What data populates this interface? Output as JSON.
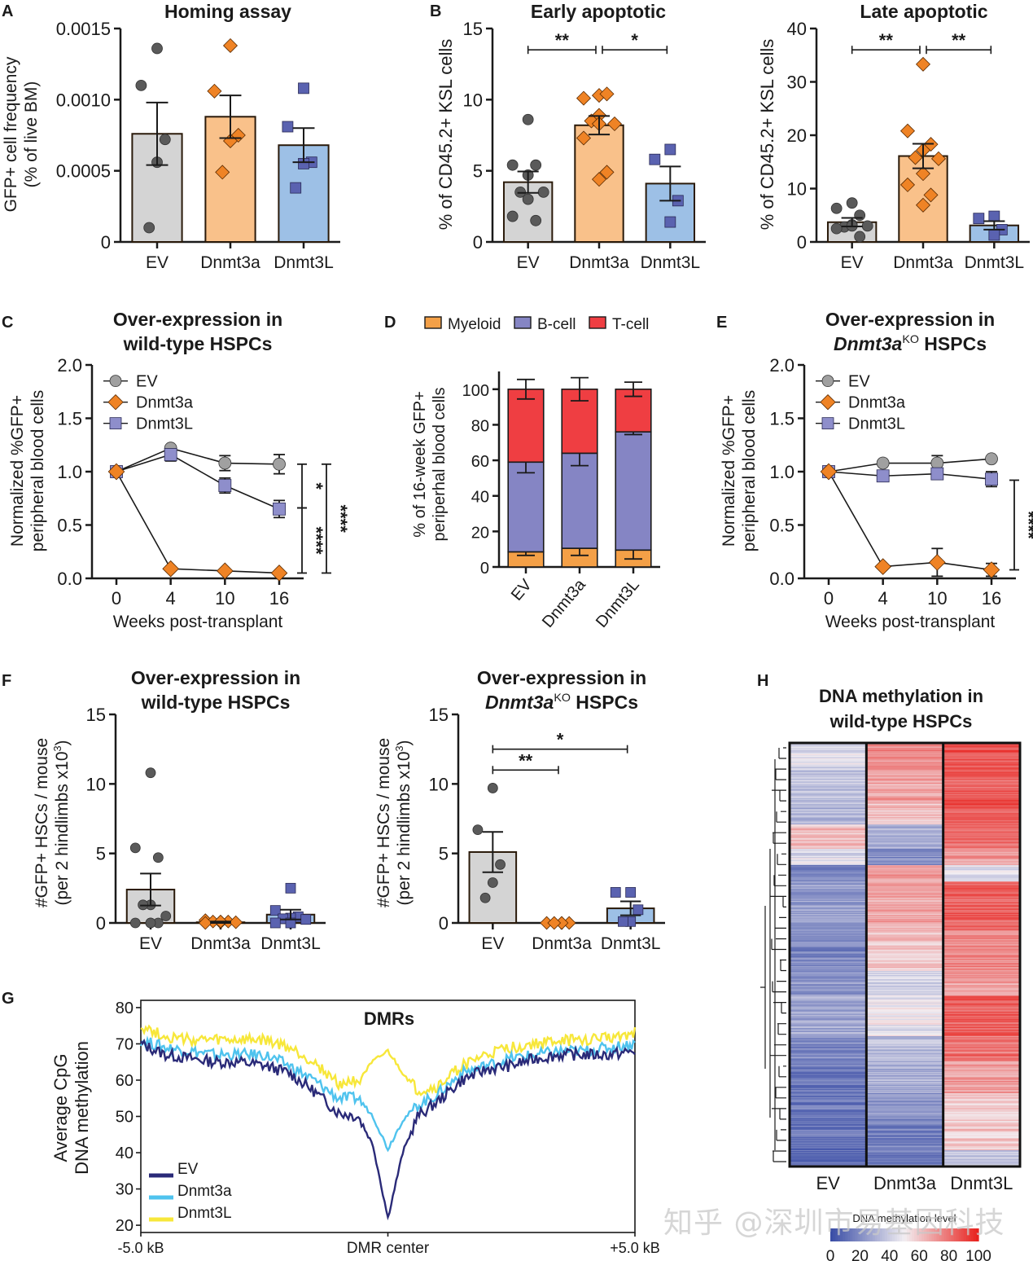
{
  "panel_labels": [
    "A",
    "B",
    "C",
    "D",
    "E",
    "F",
    "G",
    "H"
  ],
  "colors": {
    "ev_bar": "#d4d4d4",
    "ev_point": "#5a5a5a",
    "ev_line_marker": "#a0a0a0",
    "dnmt3a_bar": "#f9c18a",
    "dnmt3a_point": "#ef8325",
    "dnmt3l_bar": "#9dc0e6",
    "dnmt3l_point": "#5a62b0",
    "dnmt3l_line_marker": "#8e8ecb",
    "myeloid": "#f4a047",
    "bcell": "#8585c4",
    "tcell": "#ef3e42",
    "g_ev": "#2a2a78",
    "g_dnmt3a": "#4fc3ee",
    "g_dnmt3l": "#f7e73a",
    "heat_low": "#3b4ea6",
    "heat_mid": "#f2eef2",
    "heat_high": "#e8231f"
  },
  "chart_data": [
    {
      "id": "A",
      "type": "bar",
      "title": "Homing assay",
      "ylabel": "GFP+ cell frequency\n(% of live BM)",
      "categories": [
        "EV",
        "Dnmt3a",
        "Dnmt3L"
      ],
      "ylim": [
        0,
        0.0015
      ],
      "yticks": [
        0,
        0.0005,
        0.001,
        0.0015
      ],
      "ytick_labels": [
        "0",
        "0.0005",
        "0.0010",
        "0.0015"
      ],
      "values": [
        0.00076,
        0.00088,
        0.00068
      ],
      "sem": [
        0.00022,
        0.00015,
        0.00012
      ],
      "points": [
        [
          0.00136,
          0.0011,
          0.00072,
          0.00056,
          0.0001
        ],
        [
          0.00138,
          0.00106,
          0.00075,
          0.00071,
          0.00049
        ],
        [
          0.00108,
          0.00081,
          0.00056,
          0.00055,
          0.00038
        ]
      ],
      "markers": [
        "circle",
        "diamond",
        "square"
      ],
      "significance": []
    },
    {
      "id": "B",
      "type": "bar",
      "title": "Early apoptotic",
      "ylabel": "% of CD45.2+ KSL cells",
      "categories": [
        "EV",
        "Dnmt3a",
        "Dnmt3L"
      ],
      "ylim": [
        0,
        15
      ],
      "yticks": [
        0,
        5,
        10,
        15
      ],
      "ytick_labels": [
        "0",
        "5",
        "10",
        "15"
      ],
      "values": [
        4.2,
        8.2,
        4.1
      ],
      "sem": [
        0.75,
        0.65,
        1.2
      ],
      "points": [
        [
          8.6,
          5.4,
          5.4,
          4.7,
          3.5,
          3.5,
          3.0,
          1.8,
          1.5
        ],
        [
          10.3,
          10.1,
          10.4,
          8.9,
          8.5,
          8.3,
          8.3,
          7.3,
          4.9,
          4.4
        ],
        [
          6.5,
          5.8,
          2.9,
          1.4
        ]
      ],
      "markers": [
        "circle",
        "diamond",
        "square"
      ],
      "significance": [
        {
          "from": 0,
          "to": 1,
          "label": "**",
          "y": 13.5
        },
        {
          "from": 1,
          "to": 2,
          "label": "*",
          "y": 13.5
        }
      ]
    },
    {
      "id": "B2",
      "type": "bar",
      "title": "Late apoptotic",
      "ylabel": "% of CD45.2+ KSL cells",
      "categories": [
        "EV",
        "Dnmt3a",
        "Dnmt3L"
      ],
      "ylim": [
        0,
        40
      ],
      "yticks": [
        0,
        10,
        20,
        30,
        40
      ],
      "ytick_labels": [
        "0",
        "10",
        "20",
        "30",
        "40"
      ],
      "values": [
        3.7,
        16.1,
        3.1
      ],
      "sem": [
        0.8,
        2.3,
        0.8
      ],
      "points": [
        [
          7.3,
          6.3,
          5.0,
          3.2,
          2.8,
          3.0,
          3.0,
          2.5,
          1.0
        ],
        [
          33.3,
          20.8,
          18.3,
          17.2,
          15.8,
          15.6,
          12.8,
          10.7,
          8.8,
          6.9
        ],
        [
          4.8,
          4.4,
          2.3,
          1.3
        ]
      ],
      "markers": [
        "circle",
        "diamond",
        "square"
      ],
      "significance": [
        {
          "from": 0,
          "to": 1,
          "label": "**",
          "y": 36
        },
        {
          "from": 1,
          "to": 2,
          "label": "**",
          "y": 36
        }
      ]
    },
    {
      "id": "C",
      "type": "line",
      "title": [
        "Over-expression in",
        "wild-type HSPCs"
      ],
      "xlabel": "Weeks post-transplant",
      "ylabel": "Normalized %GFP+\nperipheral blood cells",
      "x": [
        0,
        4,
        10,
        16
      ],
      "xtick_labels": [
        "0",
        "4",
        "10",
        "16"
      ],
      "ylim": [
        0,
        2.0
      ],
      "yticks": [
        0,
        0.5,
        1.0,
        1.5,
        2.0
      ],
      "ytick_labels": [
        "0.0",
        "0.5",
        "1.0",
        "1.5",
        "2.0"
      ],
      "series": [
        {
          "name": "EV",
          "marker": "circle",
          "values": [
            1.0,
            1.22,
            1.08,
            1.07
          ],
          "sem": [
            0,
            0,
            0.07,
            0.09
          ]
        },
        {
          "name": "Dnmt3a",
          "marker": "diamond",
          "values": [
            1.0,
            0.09,
            0.07,
            0.05
          ],
          "sem": [
            0,
            0,
            0,
            0
          ]
        },
        {
          "name": "Dnmt3L",
          "marker": "square",
          "values": [
            1.0,
            1.16,
            0.87,
            0.65
          ],
          "sem": [
            0,
            0.06,
            0.07,
            0.08
          ]
        }
      ],
      "legend": "top-left",
      "significance": [
        {
          "y1": 0.05,
          "y2": 0.66,
          "label": "****",
          "pos": "inner"
        },
        {
          "y1": 0.66,
          "y2": 1.07,
          "label": "*",
          "pos": "inner"
        },
        {
          "y1": 0.05,
          "y2": 1.07,
          "label": "****",
          "pos": "outer"
        }
      ]
    },
    {
      "id": "D",
      "type": "bar",
      "stacked": true,
      "ylabel": "% of 16-week GFP+\nperiperhal blood cells",
      "categories": [
        "EV",
        "Dnmt3a",
        "Dnmt3L"
      ],
      "ylim": [
        0,
        110
      ],
      "yticks": [
        0,
        20,
        40,
        60,
        80,
        100
      ],
      "ytick_labels": [
        "0",
        "20",
        "40",
        "60",
        "80",
        "100"
      ],
      "series": [
        {
          "name": "Myeloid",
          "values": [
            8.5,
            10.5,
            9.5
          ],
          "sem": [
            2.0,
            4.0,
            5.0
          ]
        },
        {
          "name": "B-cell",
          "values": [
            50.5,
            53.5,
            66.5
          ],
          "sem": [
            6.0,
            7.0,
            1.5
          ]
        },
        {
          "name": "T-cell",
          "values": [
            41.0,
            36.0,
            24.0
          ],
          "sem": [
            5.5,
            6.5,
            4.0
          ]
        }
      ],
      "legend": "top"
    },
    {
      "id": "E",
      "type": "line",
      "title": [
        "Over-expression in",
        "Dnmt3a",
        "KO",
        " HSPCs"
      ],
      "xlabel": "Weeks post-transplant",
      "ylabel": "Normalized %GFP+\nperipheral blood cells",
      "x": [
        0,
        4,
        10,
        16
      ],
      "xtick_labels": [
        "0",
        "4",
        "10",
        "16"
      ],
      "ylim": [
        0,
        2.0
      ],
      "yticks": [
        0,
        0.5,
        1.0,
        1.5,
        2.0
      ],
      "ytick_labels": [
        "0.0",
        "0.5",
        "1.0",
        "1.5",
        "2.0"
      ],
      "series": [
        {
          "name": "EV",
          "marker": "circle",
          "values": [
            1.0,
            1.08,
            1.08,
            1.12
          ],
          "sem": [
            0,
            0,
            0.07,
            0
          ]
        },
        {
          "name": "Dnmt3a",
          "marker": "diamond",
          "values": [
            1.0,
            0.11,
            0.15,
            0.08
          ],
          "sem": [
            0,
            0,
            0.13,
            0.06
          ]
        },
        {
          "name": "Dnmt3L",
          "marker": "square",
          "values": [
            1.0,
            0.96,
            0.98,
            0.93
          ],
          "sem": [
            0,
            0,
            0.04,
            0.07
          ]
        }
      ],
      "legend": "top-left",
      "significance": [
        {
          "y1": 0.08,
          "y2": 0.92,
          "label": "****",
          "pos": "inner"
        },
        {
          "y1": 0.08,
          "y2": 1.1,
          "label": "****",
          "pos": "outer"
        }
      ]
    },
    {
      "id": "F",
      "type": "bar",
      "title": [
        "Over-expression in",
        "wild-type HSPCs"
      ],
      "ylabel": "#GFP+ HSCs / mouse\n(per 2 hindlimbs x10^3)",
      "categories": [
        "EV",
        "Dnmt3a",
        "Dnmt3L"
      ],
      "ylim": [
        0,
        15
      ],
      "yticks": [
        0,
        5,
        10,
        15
      ],
      "ytick_labels": [
        "0",
        "5",
        "10",
        "15"
      ],
      "values": [
        2.4,
        0.05,
        0.6
      ],
      "sem": [
        1.15,
        0.05,
        0.35
      ],
      "points": [
        [
          10.8,
          5.4,
          4.7,
          1.3,
          1.3,
          0.5,
          0.0,
          0.0,
          0.0,
          0.0
        ],
        [
          0.1,
          0.2,
          0.1,
          0.05,
          0.1,
          0.05,
          0.1,
          0.0
        ],
        [
          2.5,
          0.9,
          0.45,
          0.35,
          0.3,
          0.25,
          0.0,
          0.0
        ]
      ],
      "markers": [
        "circle",
        "diamond",
        "square"
      ],
      "significance": []
    },
    {
      "id": "F2",
      "type": "bar",
      "title": [
        "Over-expression in",
        "Dnmt3a",
        "KO",
        " HSPCs"
      ],
      "ylabel": "#GFP+ HSCs / mouse\n(per 2 hindlimbs x10^3)",
      "categories": [
        "EV",
        "Dnmt3a",
        "Dnmt3L"
      ],
      "ylim": [
        0,
        15
      ],
      "yticks": [
        0,
        5,
        10,
        15
      ],
      "ytick_labels": [
        "0",
        "5",
        "10",
        "15"
      ],
      "values": [
        5.1,
        0.0,
        1.05
      ],
      "sem": [
        1.45,
        0.0,
        0.5
      ],
      "points": [
        [
          9.7,
          6.7,
          4.2,
          2.9,
          1.8
        ],
        [
          0.0,
          0.0,
          0.0,
          0.0,
          0.0
        ],
        [
          2.2,
          2.2,
          0.95,
          0.1,
          0.1
        ]
      ],
      "markers": [
        "circle",
        "diamond",
        "square"
      ],
      "significance": [
        {
          "from": 0,
          "to": 2,
          "label": "*",
          "y": 12.5
        },
        {
          "from": 0,
          "to": 1,
          "label": "**",
          "y": 11.0
        }
      ]
    },
    {
      "id": "G",
      "type": "line",
      "title": "DMRs",
      "ylabel": "Average CpG\nDNA methylation",
      "xlabel": "DMR center",
      "x_range_labels": [
        "-5.0 kB",
        "DMR center",
        "+5.0 kB"
      ],
      "xlim": [
        -5.0,
        5.0
      ],
      "ylim": [
        18,
        82
      ],
      "yticks": [
        20,
        30,
        40,
        50,
        60,
        70,
        80
      ],
      "ytick_labels": [
        "20",
        "30",
        "40",
        "50",
        "60",
        "70",
        "80"
      ],
      "x": [
        -5,
        -4.5,
        -4,
        -3.5,
        -3,
        -2.5,
        -2,
        -1.5,
        -1,
        -0.6,
        -0.3,
        0,
        0.3,
        0.6,
        1,
        1.5,
        2,
        2.5,
        3,
        3.5,
        4,
        4.5,
        5
      ],
      "series": [
        {
          "name": "EV",
          "values": [
            70,
            67,
            66,
            65,
            65,
            64,
            62,
            57,
            51,
            50,
            42,
            22,
            40,
            50,
            54,
            60,
            63,
            64,
            66,
            67,
            67,
            67,
            68
          ]
        },
        {
          "name": "Dnmt3a",
          "values": [
            71,
            69,
            68,
            67,
            67,
            67,
            64,
            60,
            55,
            55,
            50,
            41,
            49,
            53,
            56,
            62,
            64,
            66,
            67,
            68,
            68,
            69,
            70
          ]
        },
        {
          "name": "Dnmt3L",
          "values": [
            75,
            72,
            71,
            71,
            71,
            71,
            69,
            65,
            59,
            60,
            65,
            68,
            62,
            57,
            58,
            64,
            67,
            69,
            70,
            71,
            71,
            72,
            73
          ]
        }
      ],
      "legend": "bottom-left"
    },
    {
      "id": "H",
      "type": "heatmap",
      "title": [
        "DNA methylation in",
        "wild-type HSPCs"
      ],
      "columns": [
        "EV",
        "Dnmt3a",
        "Dnmt3L"
      ],
      "colorbar_label": "DNA methylation level",
      "colorbar_ticks": [
        "0",
        "20",
        "40",
        "60",
        "80",
        "100"
      ],
      "colorbar_range": [
        0,
        100
      ],
      "row_blocks": [
        {
          "rows": 3,
          "values": [
            45,
            75,
            88
          ]
        },
        {
          "rows": 4,
          "values": [
            38,
            70,
            85
          ]
        },
        {
          "rows": 3,
          "values": [
            32,
            62,
            88
          ]
        },
        {
          "rows": 3,
          "values": [
            62,
            30,
            82
          ]
        },
        {
          "rows": 2,
          "values": [
            45,
            20,
            72
          ]
        },
        {
          "rows": 2,
          "values": [
            18,
            72,
            45
          ]
        },
        {
          "rows": 6,
          "values": [
            25,
            68,
            85
          ]
        },
        {
          "rows": 5,
          "values": [
            18,
            60,
            75
          ]
        },
        {
          "rows": 3,
          "values": [
            22,
            42,
            70
          ]
        },
        {
          "rows": 5,
          "values": [
            28,
            48,
            85
          ]
        },
        {
          "rows": 3,
          "values": [
            18,
            35,
            80
          ]
        },
        {
          "rows": 4,
          "values": [
            14,
            30,
            70
          ]
        },
        {
          "rows": 4,
          "values": [
            14,
            22,
            58
          ]
        },
        {
          "rows": 3,
          "values": [
            12,
            16,
            60
          ]
        },
        {
          "rows": 2,
          "values": [
            10,
            14,
            38
          ]
        }
      ]
    }
  ],
  "watermark": "知乎 @深圳市易基因科技"
}
